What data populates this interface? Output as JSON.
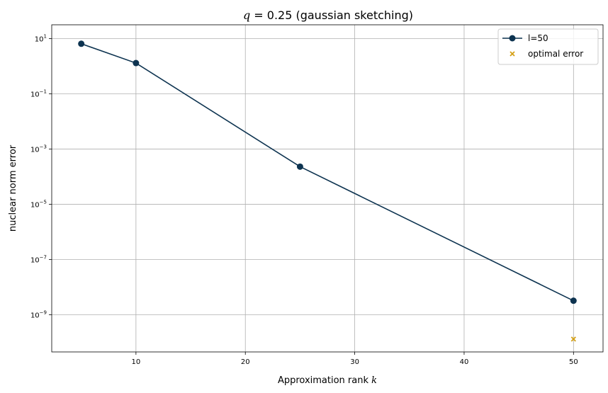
{
  "chart_data": {
    "type": "line",
    "title_prefix": "q",
    "title_eq": " = 0.25",
    "title_rest": " (gaussian sketching)",
    "xlabel": "Approximation rank ",
    "xlabel_var": "k",
    "ylabel": "nuclear norm error",
    "xlim": [
      2.3,
      52.7
    ],
    "ylim_log10": [
      -10.35,
      1.5
    ],
    "y_scale": "log",
    "grid": true,
    "legend_position": "top-right",
    "x_ticks": [
      10,
      20,
      30,
      40,
      50
    ],
    "y_tick_exponents": [
      1,
      -1,
      -3,
      -5,
      -7,
      -9
    ],
    "series": [
      {
        "name": "l=50",
        "color": "#0d3350",
        "marker": "circle",
        "x": [
          5,
          10,
          25,
          50
        ],
        "y": [
          6.5,
          1.3,
          0.00023,
          3.2e-09
        ]
      },
      {
        "name": "optimal error",
        "color": "#d4a017",
        "marker": "x",
        "x": [
          50
        ],
        "y": [
          1.3e-10
        ]
      }
    ]
  }
}
